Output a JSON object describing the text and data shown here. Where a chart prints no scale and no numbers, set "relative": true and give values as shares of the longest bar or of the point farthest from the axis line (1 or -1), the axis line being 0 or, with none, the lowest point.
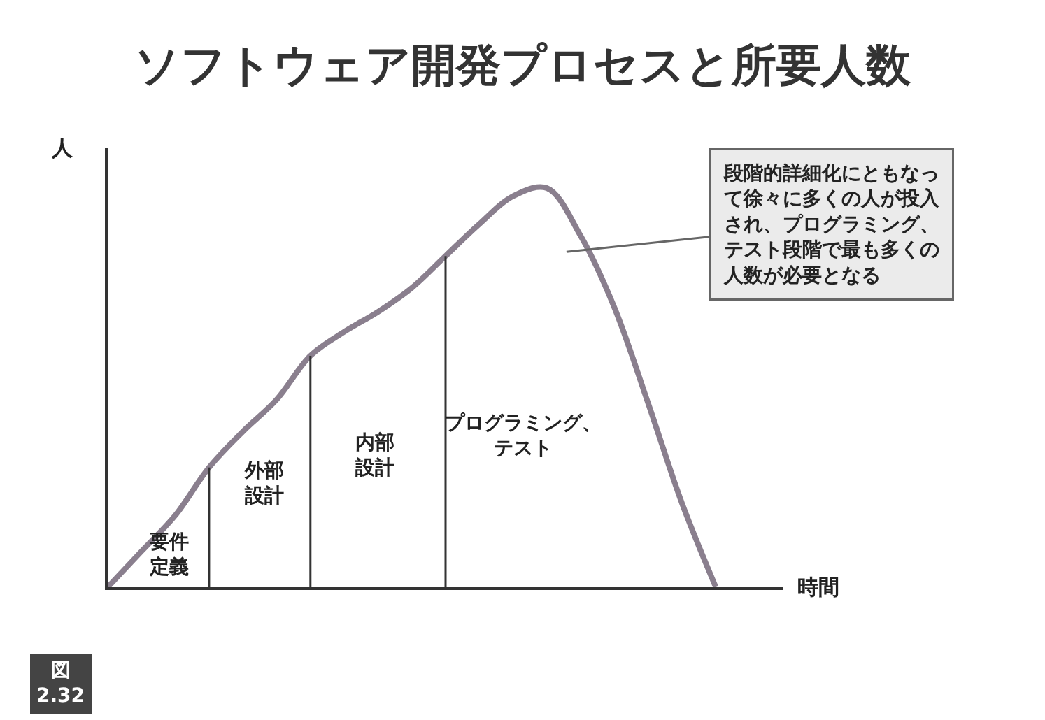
{
  "chart_data": {
    "type": "line",
    "title": "ソフトウェア開発プロセスと所要人数",
    "xlabel": "時間",
    "ylabel": "人",
    "categories": [
      null,
      null,
      null,
      null,
      null,
      null,
      null,
      null,
      null,
      null,
      null,
      null,
      null,
      null,
      null,
      null,
      null,
      null,
      null,
      null,
      null
    ],
    "series": [
      {
        "color": "#8a7f8e",
        "values": [
          0,
          0.09,
          0.18,
          0.3,
          0.39,
          0.47,
          0.58,
          0.64,
          0.69,
          0.75,
          0.83,
          0.91,
          0.98,
          1.0,
          0.88,
          0.7,
          0.46,
          0.21,
          0,
          null,
          null
        ]
      }
    ],
    "relative": true,
    "annotations": [
      "段階的詳細化にともなって徐々に多くの人が投入され、プログラミング、テスト段階で最も多くの人数が必要となる",
      "要件定義",
      "外部設計",
      "内部設計",
      "プログラミング、テスト",
      "図2.32"
    ],
    "marker": "none",
    "line_style": "solid"
  }
}
